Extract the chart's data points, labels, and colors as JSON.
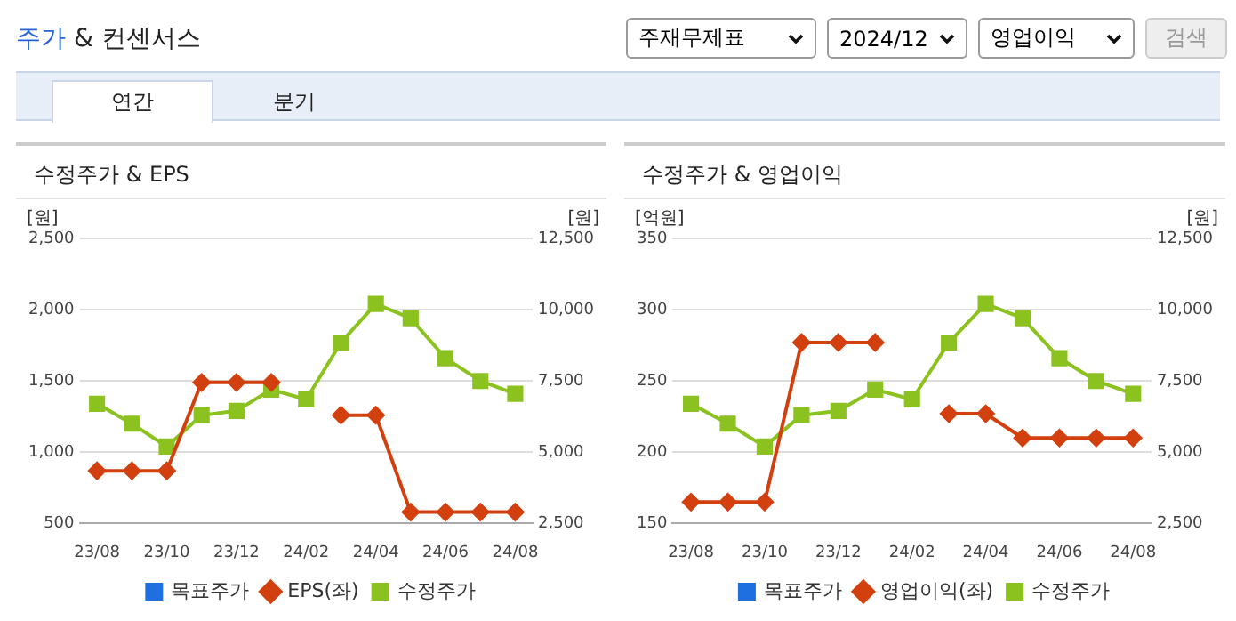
{
  "chart_data": [
    {
      "type": "other",
      "title": "주가 & 컨센서스",
      "annotations": [
        "주재무제표",
        "2024/12",
        "영업이익",
        "검색",
        "연간",
        "분기"
      ]
    },
    {
      "type": "line",
      "title": "수정주가 & EPS",
      "ylabel": "[원]",
      "y2label": "[원]",
      "categories": [
        "23/08",
        null,
        "23/10",
        null,
        "23/12",
        null,
        "24/02",
        null,
        "24/04",
        null,
        "24/06",
        null,
        "24/08"
      ],
      "series": [
        {
          "name": "목표주가",
          "color": "#1f6fe0",
          "marker": "square",
          "values": [
            null,
            null,
            null,
            null,
            null,
            null,
            null,
            null,
            null,
            null,
            null,
            null,
            null
          ]
        },
        {
          "name": "EPS(좌)",
          "color": "#d2400f",
          "marker": "diamond",
          "values": [
            870,
            870,
            870,
            1490,
            1490,
            1490,
            null,
            1260,
            1260,
            580,
            580,
            580,
            580
          ]
        },
        {
          "name": "수정주가",
          "color": "#8cc21f",
          "marker": "square",
          "axis": "y2",
          "values": [
            6700,
            6000,
            5200,
            6300,
            6450,
            7200,
            6850,
            8850,
            10200,
            9700,
            8300,
            7500,
            7050
          ]
        }
      ],
      "ylim": [
        500,
        2500
      ],
      "yticks": [
        {
          "value": 500,
          "label": "500"
        },
        {
          "value": 1000,
          "label": "1,000"
        },
        {
          "value": 1500,
          "label": "1,500"
        },
        {
          "value": 2000,
          "label": "2,000"
        },
        {
          "value": 2500,
          "label": "2,500"
        }
      ],
      "y2lim": [
        2500,
        12500
      ],
      "y2ticks": [
        {
          "value": 2500,
          "label": "2,500"
        },
        {
          "value": 5000,
          "label": "5,000"
        },
        {
          "value": 7500,
          "label": "7,500"
        },
        {
          "value": 10000,
          "label": "10,000"
        },
        {
          "value": 12500,
          "label": "12,500"
        }
      ],
      "grid": "y",
      "legend": "bottom"
    },
    {
      "type": "line",
      "title": "수정주가 & 영업이익",
      "ylabel": "[억원]",
      "y2label": "[원]",
      "categories": [
        "23/08",
        null,
        "23/10",
        null,
        "23/12",
        null,
        "24/02",
        null,
        "24/04",
        null,
        "24/06",
        null,
        "24/08"
      ],
      "series": [
        {
          "name": "목표주가",
          "color": "#1f6fe0",
          "marker": "square",
          "values": [
            null,
            null,
            null,
            null,
            null,
            null,
            null,
            null,
            null,
            null,
            null,
            null,
            null
          ]
        },
        {
          "name": "영업이익(좌)",
          "color": "#d2400f",
          "marker": "diamond",
          "values": [
            165,
            165,
            165,
            277,
            277,
            277,
            null,
            227,
            227,
            210,
            210,
            210,
            210
          ]
        },
        {
          "name": "수정주가",
          "color": "#8cc21f",
          "marker": "square",
          "axis": "y2",
          "values": [
            6700,
            6000,
            5200,
            6300,
            6450,
            7200,
            6850,
            8850,
            10200,
            9700,
            8300,
            7500,
            7050
          ]
        }
      ],
      "ylim": [
        150,
        350
      ],
      "yticks": [
        150,
        200,
        250,
        300,
        350
      ],
      "y2lim": [
        2500,
        12500
      ],
      "y2ticks": [
        {
          "value": 2500,
          "label": "2,500"
        },
        {
          "value": 5000,
          "label": "5,000"
        },
        {
          "value": 7500,
          "label": "7,500"
        },
        {
          "value": 10000,
          "label": "10,000"
        },
        {
          "value": 12500,
          "label": "12,500"
        }
      ],
      "grid": "y",
      "legend": "bottom"
    }
  ]
}
